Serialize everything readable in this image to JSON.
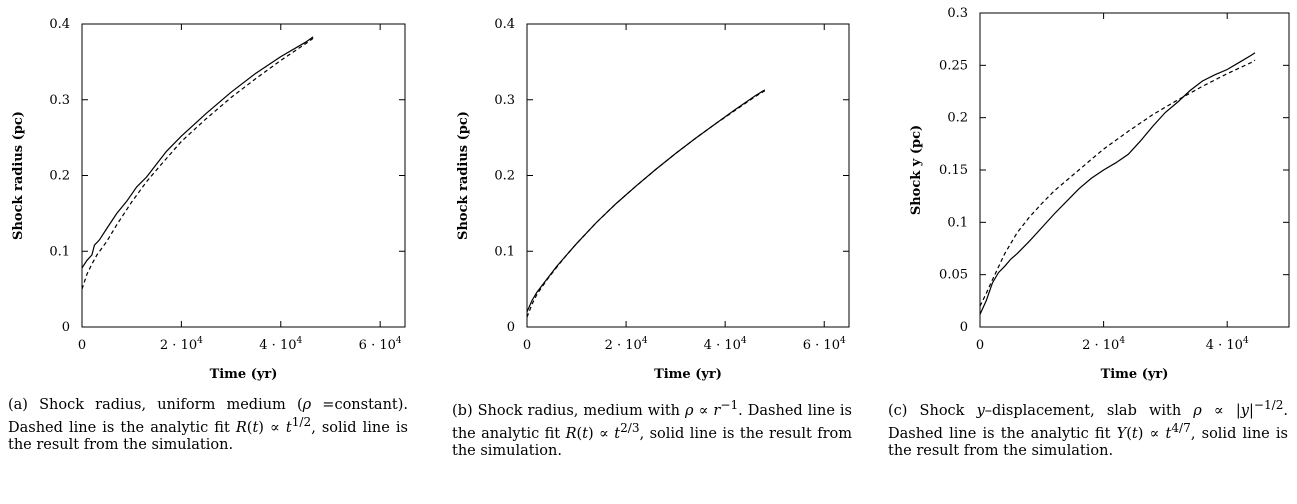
{
  "chart_data": [
    {
      "id": "a",
      "type": "line",
      "xlabel": "Time (yr)",
      "ylabel": "Shock radius (pc)",
      "xlim": [
        0,
        65000
      ],
      "ylim": [
        0,
        0.4
      ],
      "x_ticks": [
        {
          "value": 0,
          "base": "0",
          "exp": ""
        },
        {
          "value": 20000,
          "base": "2 · 10",
          "exp": "4"
        },
        {
          "value": 40000,
          "base": "4 · 10",
          "exp": "4"
        },
        {
          "value": 60000,
          "base": "6 · 10",
          "exp": "4"
        }
      ],
      "y_ticks": [
        {
          "value": 0,
          "label": "0"
        },
        {
          "value": 0.1,
          "label": "0.1"
        },
        {
          "value": 0.2,
          "label": "0.2"
        },
        {
          "value": 0.3,
          "label": "0.3"
        },
        {
          "value": 0.4,
          "label": "0.4"
        }
      ],
      "series": [
        {
          "style": "solid",
          "points": [
            [
              0,
              0.078
            ],
            [
              1000,
              0.088
            ],
            [
              2000,
              0.095
            ],
            [
              2500,
              0.108
            ],
            [
              3500,
              0.115
            ],
            [
              5000,
              0.13
            ],
            [
              7000,
              0.15
            ],
            [
              9000,
              0.166
            ],
            [
              11000,
              0.185
            ],
            [
              13000,
              0.198
            ],
            [
              15000,
              0.215
            ],
            [
              17000,
              0.232
            ],
            [
              20000,
              0.252
            ],
            [
              25000,
              0.282
            ],
            [
              30000,
              0.31
            ],
            [
              35000,
              0.335
            ],
            [
              40000,
              0.357
            ],
            [
              45000,
              0.376
            ],
            [
              46500,
              0.383
            ]
          ]
        },
        {
          "style": "dashed",
          "points": [
            [
              0,
              0.05
            ],
            [
              1000,
              0.07
            ],
            [
              2000,
              0.083
            ],
            [
              3000,
              0.095
            ],
            [
              5000,
              0.113
            ],
            [
              7000,
              0.135
            ],
            [
              10000,
              0.165
            ],
            [
              13000,
              0.192
            ],
            [
              16000,
              0.215
            ],
            [
              20000,
              0.245
            ],
            [
              25000,
              0.275
            ],
            [
              30000,
              0.303
            ],
            [
              35000,
              0.328
            ],
            [
              40000,
              0.352
            ],
            [
              45000,
              0.374
            ],
            [
              46500,
              0.381
            ]
          ]
        }
      ],
      "caption": "(a) Shock radius, uniform medium (ρ =constant). Dashed line is the analytic fit R(t) ∝ t^{1/2}, solid line is the result from the simulation."
    },
    {
      "id": "b",
      "type": "line",
      "xlabel": "Time (yr)",
      "ylabel": "Shock radius (pc)",
      "xlim": [
        0,
        65000
      ],
      "ylim": [
        0,
        0.4
      ],
      "x_ticks": [
        {
          "value": 0,
          "base": "0",
          "exp": ""
        },
        {
          "value": 20000,
          "base": "2 · 10",
          "exp": "4"
        },
        {
          "value": 40000,
          "base": "4 · 10",
          "exp": "4"
        },
        {
          "value": 60000,
          "base": "6 · 10",
          "exp": "4"
        }
      ],
      "y_ticks": [
        {
          "value": 0,
          "label": "0"
        },
        {
          "value": 0.1,
          "label": "0.1"
        },
        {
          "value": 0.2,
          "label": "0.2"
        },
        {
          "value": 0.3,
          "label": "0.3"
        },
        {
          "value": 0.4,
          "label": "0.4"
        }
      ],
      "series": [
        {
          "style": "solid",
          "points": [
            [
              0,
              0.02
            ],
            [
              1000,
              0.035
            ],
            [
              2000,
              0.046
            ],
            [
              4000,
              0.063
            ],
            [
              6000,
              0.08
            ],
            [
              8000,
              0.095
            ],
            [
              10000,
              0.11
            ],
            [
              14000,
              0.138
            ],
            [
              18000,
              0.163
            ],
            [
              22000,
              0.186
            ],
            [
              26000,
              0.208
            ],
            [
              30000,
              0.229
            ],
            [
              34000,
              0.249
            ],
            [
              38000,
              0.268
            ],
            [
              42000,
              0.287
            ],
            [
              46000,
              0.305
            ],
            [
              48000,
              0.313
            ]
          ]
        },
        {
          "style": "dashed",
          "points": [
            [
              0,
              0.013
            ],
            [
              1000,
              0.03
            ],
            [
              2000,
              0.043
            ],
            [
              4000,
              0.062
            ],
            [
              6000,
              0.079
            ],
            [
              8000,
              0.095
            ],
            [
              10000,
              0.11
            ],
            [
              14000,
              0.138
            ],
            [
              18000,
              0.163
            ],
            [
              22000,
              0.186
            ],
            [
              26000,
              0.208
            ],
            [
              30000,
              0.229
            ],
            [
              34000,
              0.249
            ],
            [
              38000,
              0.268
            ],
            [
              42000,
              0.286
            ],
            [
              46000,
              0.304
            ],
            [
              48000,
              0.312
            ]
          ]
        }
      ],
      "caption": "(b) Shock radius, medium with ρ ∝ r^{−1}. Dashed line is the analytic fit R(t) ∝ t^{2/3}, solid line is the result from the simulation."
    },
    {
      "id": "c",
      "type": "line",
      "xlabel": "Time (yr)",
      "ylabel": "Shock y (pc)",
      "xlim": [
        0,
        50000
      ],
      "ylim": [
        0,
        0.3
      ],
      "x_ticks": [
        {
          "value": 0,
          "base": "0",
          "exp": ""
        },
        {
          "value": 20000,
          "base": "2 · 10",
          "exp": "4"
        },
        {
          "value": 40000,
          "base": "4 · 10",
          "exp": "4"
        }
      ],
      "y_ticks": [
        {
          "value": 0,
          "label": "0"
        },
        {
          "value": 0.05,
          "label": "0.05"
        },
        {
          "value": 0.1,
          "label": "0.1"
        },
        {
          "value": 0.15,
          "label": "0.15"
        },
        {
          "value": 0.2,
          "label": "0.2"
        },
        {
          "value": 0.25,
          "label": "0.25"
        },
        {
          "value": 0.3,
          "label": "0.3"
        }
      ],
      "series": [
        {
          "style": "solid",
          "points": [
            [
              0,
              0.012
            ],
            [
              1000,
              0.025
            ],
            [
              2000,
              0.042
            ],
            [
              3000,
              0.052
            ],
            [
              4000,
              0.058
            ],
            [
              5000,
              0.065
            ],
            [
              6000,
              0.07
            ],
            [
              8000,
              0.082
            ],
            [
              10000,
              0.095
            ],
            [
              12000,
              0.108
            ],
            [
              14000,
              0.12
            ],
            [
              16000,
              0.132
            ],
            [
              18000,
              0.142
            ],
            [
              20000,
              0.15
            ],
            [
              22000,
              0.157
            ],
            [
              24000,
              0.165
            ],
            [
              26000,
              0.178
            ],
            [
              28000,
              0.192
            ],
            [
              30000,
              0.205
            ],
            [
              32000,
              0.215
            ],
            [
              34000,
              0.226
            ],
            [
              36000,
              0.235
            ],
            [
              38000,
              0.241
            ],
            [
              40000,
              0.246
            ],
            [
              42000,
              0.253
            ],
            [
              44000,
              0.26
            ],
            [
              44500,
              0.262
            ]
          ]
        },
        {
          "style": "dashed",
          "points": [
            [
              0,
              0.02
            ],
            [
              1000,
              0.032
            ],
            [
              2000,
              0.045
            ],
            [
              4000,
              0.07
            ],
            [
              6000,
              0.09
            ],
            [
              8000,
              0.105
            ],
            [
              10000,
              0.118
            ],
            [
              12000,
              0.13
            ],
            [
              14000,
              0.14
            ],
            [
              16000,
              0.15
            ],
            [
              18000,
              0.16
            ],
            [
              20000,
              0.17
            ],
            [
              24000,
              0.187
            ],
            [
              28000,
              0.203
            ],
            [
              32000,
              0.217
            ],
            [
              36000,
              0.23
            ],
            [
              40000,
              0.242
            ],
            [
              44000,
              0.253
            ],
            [
              44500,
              0.255
            ]
          ]
        }
      ],
      "caption": "(c) Shock y–displacement, slab with ρ ∝ |y|^{−1/2}. Dashed line is the analytic fit Y(t) ∝ t^{4/7}, solid line is the result from the simulation."
    }
  ]
}
